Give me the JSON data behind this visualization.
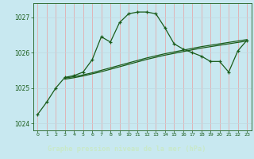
{
  "title": "Graphe pression niveau de la mer (hPa)",
  "x_main": [
    0,
    1,
    2,
    3,
    4,
    5,
    6,
    7,
    8,
    9,
    10,
    11,
    12,
    13,
    14,
    15,
    16,
    17,
    18,
    19,
    20,
    21,
    22,
    23
  ],
  "line_main": [
    1024.25,
    1024.6,
    1025.0,
    1025.3,
    1025.35,
    1025.45,
    1025.8,
    1026.45,
    1026.3,
    1026.85,
    1027.1,
    1027.15,
    1027.15,
    1027.1,
    1026.7,
    1026.25,
    1026.1,
    1026.0,
    1025.9,
    1025.75,
    1025.75,
    1025.45,
    1026.05,
    1026.35
  ],
  "x_smooth": [
    3,
    4,
    5,
    6,
    7,
    8,
    9,
    10,
    11,
    12,
    13,
    14,
    15,
    16,
    17,
    18,
    19,
    20,
    21,
    22,
    23
  ],
  "line_smooth1": [
    1025.28,
    1025.32,
    1025.37,
    1025.43,
    1025.5,
    1025.57,
    1025.64,
    1025.71,
    1025.78,
    1025.85,
    1025.91,
    1025.97,
    1026.02,
    1026.07,
    1026.12,
    1026.17,
    1026.21,
    1026.25,
    1026.29,
    1026.33,
    1026.37
  ],
  "line_smooth2": [
    1025.25,
    1025.29,
    1025.34,
    1025.4,
    1025.46,
    1025.53,
    1025.6,
    1025.67,
    1025.74,
    1025.81,
    1025.87,
    1025.93,
    1025.98,
    1026.03,
    1026.08,
    1026.13,
    1026.17,
    1026.21,
    1026.25,
    1026.29,
    1026.33
  ],
  "line_color": "#1a5c1a",
  "bg_color": "#c8e8f0",
  "grid_color_v": "#e8a0a0",
  "grid_color_h": "#c0d8e0",
  "label_bg": "#2d6b2d",
  "label_fg": "#c8e8c8",
  "ylabel_vals": [
    1024,
    1025,
    1026,
    1027
  ],
  "ylim": [
    1023.8,
    1027.4
  ],
  "xlim": [
    -0.5,
    23.5
  ]
}
